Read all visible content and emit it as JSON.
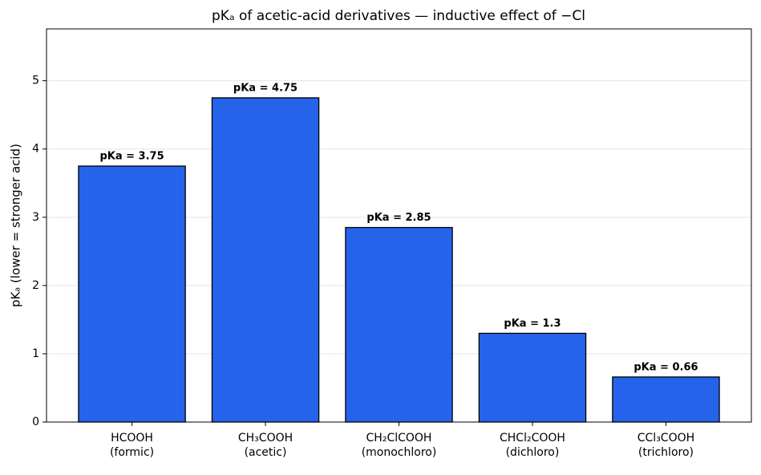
{
  "chart_data": {
    "type": "bar",
    "title": "pKₐ of acetic-acid derivatives — inductive effect of −Cl",
    "y_label": "pKₐ (lower = stronger acid)",
    "categories": [
      "HCOOH\n(formic)",
      "CH₃COOH\n(acetic)",
      "CH₂ClCOOH\n(monochloro)",
      "CHCl₂COOH\n(dichloro)",
      "CCl₃COOH\n(trichloro)"
    ],
    "values": [
      3.75,
      4.75,
      2.85,
      1.3,
      0.66
    ],
    "value_labels": [
      "pKa = 3.75",
      "pKa = 4.75",
      "pKa = 2.85",
      "pKa = 1.3",
      "pKa = 0.66"
    ],
    "color": "#2563eb",
    "ylim": [
      0,
      5.76
    ],
    "yticks": [
      0,
      1,
      2,
      3,
      4,
      5
    ],
    "grid": true
  }
}
